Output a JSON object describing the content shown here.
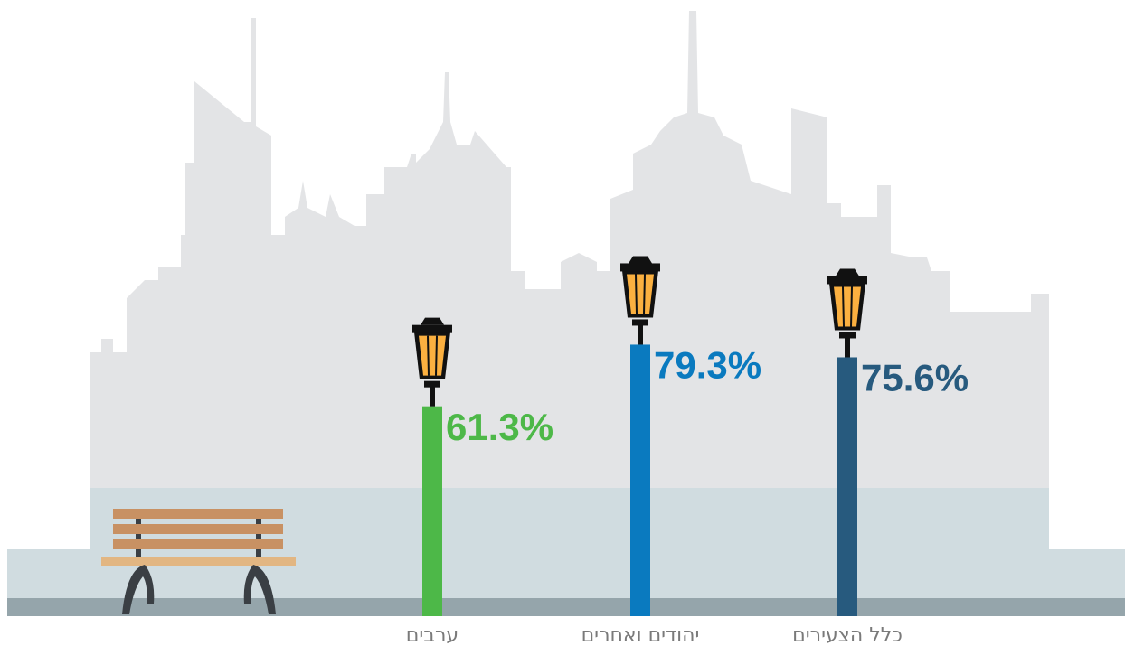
{
  "chart_data": {
    "type": "bar",
    "categories": [
      "ערבים",
      "יהודים ואחרים",
      "כלל הצעירים"
    ],
    "values": [
      61.3,
      79.3,
      75.6
    ],
    "value_labels": [
      "61.3%",
      "79.3%",
      "75.6%"
    ],
    "colors": [
      "#4db848",
      "#0a7abf",
      "#275a7e"
    ]
  }
}
